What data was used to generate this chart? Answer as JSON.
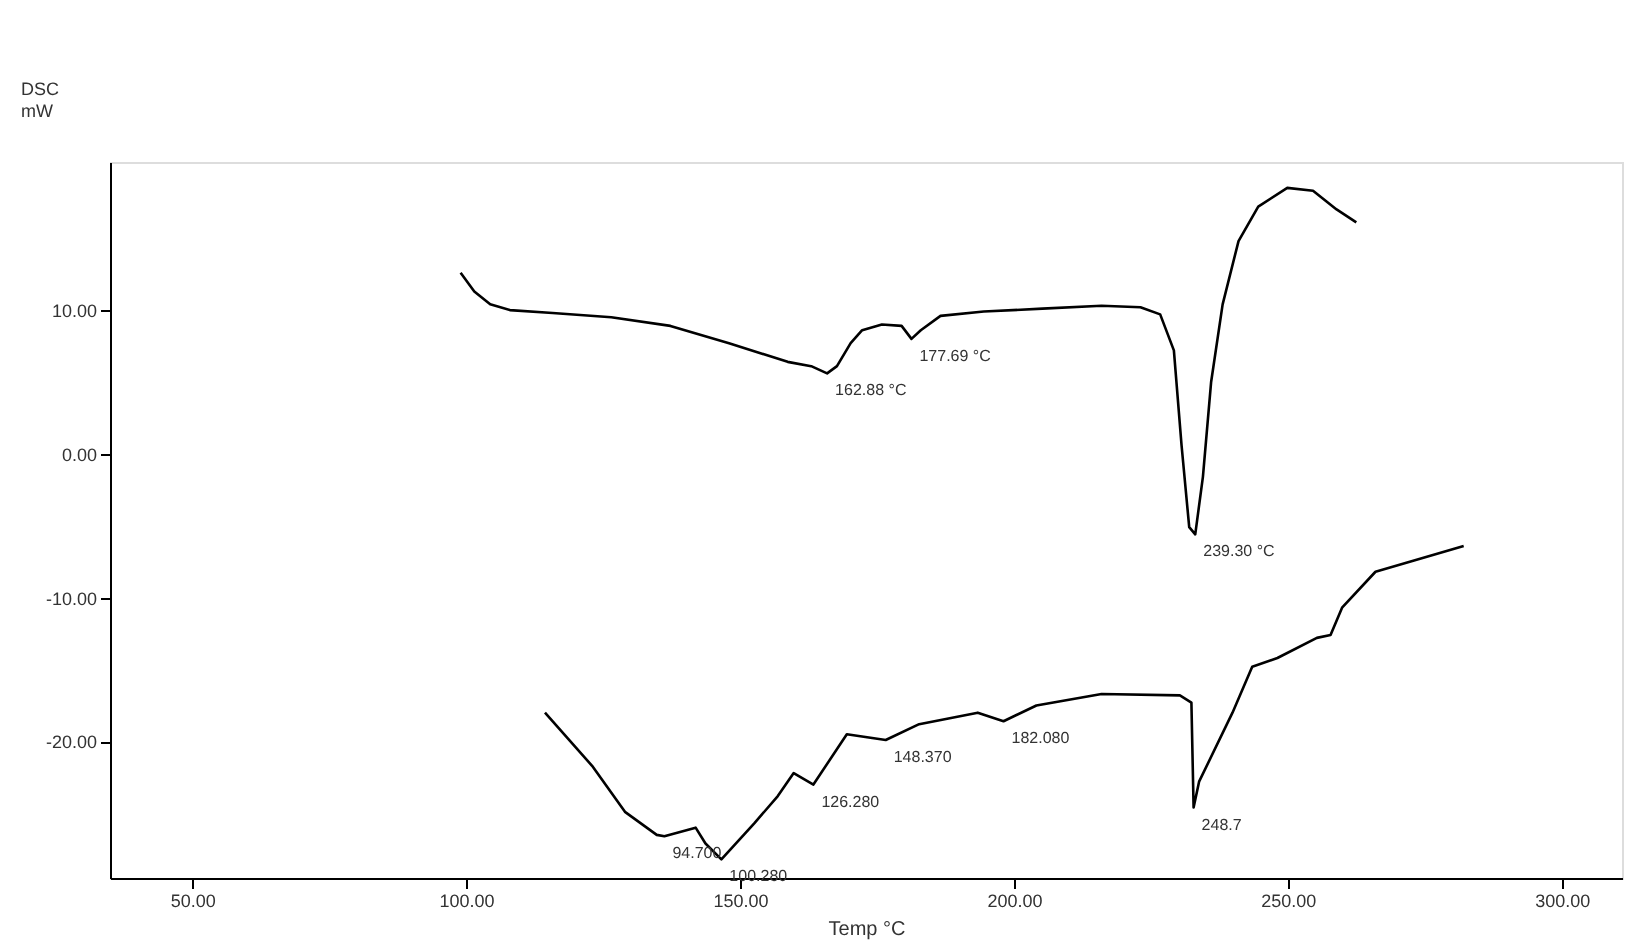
{
  "chart_data": {
    "type": "line",
    "xlabel": "Temp °C",
    "ylabel": "DSC\nmW",
    "xlim": [
      35,
      311
    ],
    "ylim": [
      -29.5,
      20.3
    ],
    "xticks": [
      {
        "value": 50,
        "label": "50.00"
      },
      {
        "value": 100,
        "label": "100.00"
      },
      {
        "value": 150,
        "label": "150.00"
      },
      {
        "value": 200,
        "label": "200.00"
      },
      {
        "value": 250,
        "label": "250.00"
      },
      {
        "value": 300,
        "label": "300.00"
      }
    ],
    "yticks": [
      {
        "value": -20,
        "label": "-20.00"
      },
      {
        "value": -10,
        "label": "-10.00"
      },
      {
        "value": 0,
        "label": "0.00"
      },
      {
        "value": 10,
        "label": "10.00"
      }
    ],
    "grid": false,
    "legend": false,
    "marker": "none",
    "line_style": "solid",
    "series": [
      {
        "color": "#000000",
        "x": [
          99.0,
          101.5,
          104.4,
          108.0,
          115.8,
          126.5,
          137.3,
          148.0,
          158.7,
          163.0,
          165.9,
          167.7,
          170.2,
          172.3,
          175.9,
          179.5,
          181.3,
          183.0,
          186.6,
          194.5,
          205.2,
          216.0,
          223.1,
          226.7,
          229.2,
          230.6,
          232.0,
          233.1,
          234.5,
          236.0,
          238.1,
          241.0,
          244.6,
          249.9,
          254.6,
          258.9,
          262.5
        ],
        "values": [
          12.6,
          11.3,
          10.4,
          10.0,
          9.8,
          9.5,
          8.9,
          7.7,
          6.4,
          6.1,
          5.6,
          6.1,
          7.7,
          8.6,
          9.0,
          8.9,
          8.0,
          8.6,
          9.6,
          9.9,
          10.1,
          10.3,
          10.2,
          9.7,
          7.2,
          0.6,
          -5.1,
          -5.6,
          -1.6,
          5.0,
          10.4,
          14.8,
          17.2,
          18.5,
          18.3,
          17.0,
          16.1
        ]
      },
      {
        "color": "#000000",
        "x": [
          114.4,
          123.0,
          129.0,
          134.8,
          136.2,
          141.9,
          143.7,
          146.6,
          152.6,
          156.9,
          159.8,
          163.4,
          169.5,
          176.6,
          182.7,
          193.4,
          198.1,
          204.1,
          216.0,
          230.3,
          232.4,
          232.8,
          233.8,
          239.9,
          243.5,
          248.1,
          255.3,
          257.8,
          259.9,
          266.0,
          273.2,
          282.1
        ],
        "values": [
          -18.0,
          -21.7,
          -24.9,
          -26.5,
          -26.6,
          -26.0,
          -27.1,
          -28.2,
          -25.7,
          -23.8,
          -22.2,
          -23.0,
          -19.5,
          -19.9,
          -18.8,
          -18.0,
          -18.6,
          -17.5,
          -16.7,
          -16.8,
          -17.3,
          -24.6,
          -22.8,
          -18.0,
          -14.8,
          -14.2,
          -12.8,
          -12.6,
          -10.7,
          -8.2,
          -7.4,
          -6.4
        ]
      }
    ],
    "annotations": [
      {
        "text": "162.88 °C",
        "x": 165.9,
        "y": 5.6
      },
      {
        "text": "177.69 °C",
        "x": 181.3,
        "y": 8.0
      },
      {
        "text": "239.30 °C",
        "x": 233.1,
        "y": -5.6
      },
      {
        "text": "94.700",
        "x": 136.2,
        "y": -26.6
      },
      {
        "text": "100.280",
        "x": 146.6,
        "y": -28.2
      },
      {
        "text": "126.280",
        "x": 163.4,
        "y": -23.0
      },
      {
        "text": "148.370",
        "x": 176.6,
        "y": -19.9
      },
      {
        "text": "182.080",
        "x": 198.1,
        "y": -18.6
      },
      {
        "text": "248.7",
        "x": 232.8,
        "y": -24.6
      }
    ]
  }
}
